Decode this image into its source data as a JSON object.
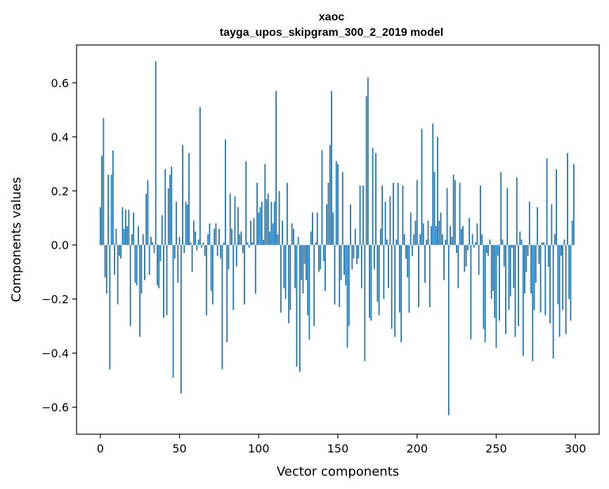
{
  "chart_data": {
    "type": "bar",
    "title": "xaoc",
    "subtitle": "tayga_upos_skipgram_300_2_2019 model",
    "xlabel": "Vector components",
    "ylabel": "Components values",
    "xlim": [
      -15,
      315
    ],
    "ylim": [
      -0.7,
      0.74
    ],
    "xticks": [
      0,
      50,
      100,
      150,
      200,
      250,
      300
    ],
    "xtick_labels": [
      "0",
      "50",
      "100",
      "150",
      "200",
      "250",
      "300"
    ],
    "yticks": [
      -0.6,
      -0.4,
      -0.2,
      0.0,
      0.2,
      0.4,
      0.6
    ],
    "ytick_labels": [
      "−0.6",
      "−0.4",
      "−0.2",
      "0.0",
      "0.2",
      "0.4",
      "0.6"
    ],
    "grid": false,
    "bar_color": "#1f77b4",
    "x": "indices 0..299",
    "values": [
      0.14,
      0.33,
      0.47,
      -0.12,
      -0.18,
      0.26,
      -0.46,
      0.26,
      0.35,
      -0.11,
      0.06,
      -0.22,
      -0.04,
      -0.05,
      0.14,
      0.06,
      0.13,
      0.07,
      0.13,
      -0.3,
      0.04,
      0.12,
      -0.14,
      -0.15,
      0.07,
      -0.34,
      -0.18,
      0.04,
      -0.13,
      0.19,
      0.24,
      -0.11,
      0.03,
      0.01,
      -0.03,
      0.68,
      -0.15,
      -0.16,
      -0.06,
      0.11,
      -0.27,
      0.28,
      -0.26,
      0.21,
      0.26,
      0.29,
      -0.49,
      -0.05,
      0.16,
      -0.14,
      0.03,
      -0.55,
      0.37,
      -0.03,
      0.16,
      0.15,
      0.34,
      0.01,
      -0.1,
      0.09,
      0.05,
      -0.02,
      0.02,
      0.51,
      -0.01,
      0.01,
      -0.04,
      -0.26,
      0.04,
      0.08,
      -0.17,
      -0.22,
      0.06,
      0.08,
      -0.04,
      0.06,
      -0.05,
      -0.46,
      0.01,
      0.39,
      -0.36,
      -0.09,
      0.19,
      0.06,
      -0.24,
      0.18,
      -0.08,
      0.14,
      0.04,
      0.05,
      -0.03,
      -0.22,
      0.31,
      0.01,
      -0.01,
      0.09,
      0.01,
      0.1,
      -0.18,
      0.23,
      0.12,
      0.14,
      0.16,
      0.02,
      0.3,
      0.17,
      0.19,
      0.05,
      0.16,
      0.08,
      0.16,
      0.57,
      0.04,
      0.2,
      -0.25,
      0.09,
      -0.16,
      -0.2,
      0.23,
      -0.29,
      -0.24,
      0.08,
      0.06,
      -0.16,
      -0.45,
      0.03,
      -0.47,
      -0.13,
      -0.18,
      -0.07,
      -0.13,
      -0.26,
      -0.35,
      0.05,
      0.12,
      -0.3,
      0.01,
      0.12,
      -0.1,
      -0.09,
      0.35,
      -0.06,
      -0.17,
      0.15,
      0.23,
      0.37,
      0.57,
      0.12,
      -0.22,
      0.31,
      0.3,
      -0.23,
      -0.13,
      0.27,
      -0.11,
      -0.15,
      -0.38,
      -0.3,
      0.15,
      -0.09,
      -0.05,
      0.06,
      -0.07,
      -0.05,
      0.22,
      -0.16,
      0.22,
      -0.43,
      0.55,
      0.62,
      -0.27,
      -0.28,
      0.36,
      -0.09,
      0.34,
      -0.21,
      -0.26,
      0.06,
      0.22,
      -0.2,
      0.16,
      0.02,
      -0.16,
      0.18,
      -0.31,
      0.23,
      -0.34,
      0.02,
      0.23,
      -0.25,
      -0.36,
      0.22,
      0.04,
      -0.05,
      -0.12,
      -0.25,
      0.12,
      -0.04,
      0.04,
      0.09,
      0.24,
      -0.23,
      0.04,
      0.43,
      0.08,
      -0.14,
      0.02,
      0.09,
      -0.23,
      0.07,
      0.45,
      0.27,
      0.07,
      0.4,
      0.09,
      0.12,
      0.04,
      -0.13,
      0.02,
      0.21,
      -0.63,
      0.07,
      0.03,
      0.26,
      0.24,
      -0.03,
      -0.16,
      0.23,
      0.06,
      0.07,
      -0.1,
      -0.08,
      -0.02,
      0.1,
      -0.35,
      0.04,
      -0.01,
      0.01,
      0.08,
      -0.11,
      0.22,
      0.04,
      -0.31,
      -0.36,
      -0.03,
      -0.04,
      0.02,
      -0.2,
      -0.17,
      -0.27,
      -0.38,
      -0.04,
      -0.28,
      0.27,
      0.02,
      -0.08,
      -0.33,
      0.21,
      -0.24,
      -0.19,
      -0.01,
      -0.16,
      -0.34,
      0.25,
      -0.3,
      0.05,
      0.02,
      -0.41,
      -0.18,
      -0.1,
      -0.04,
      0.16,
      -0.18,
      -0.43,
      -0.24,
      -0.14,
      0.14,
      -0.07,
      -0.25,
      0.01,
      0.01,
      -0.26,
      0.32,
      -0.08,
      -0.29,
      0.15,
      -0.42,
      0.04,
      0.28,
      -0.22,
      -0.34,
      -0.04,
      -0.24,
      0.02,
      -0.33,
      0.34,
      -0.2,
      -0.28,
      0.09,
      0.3
    ]
  }
}
